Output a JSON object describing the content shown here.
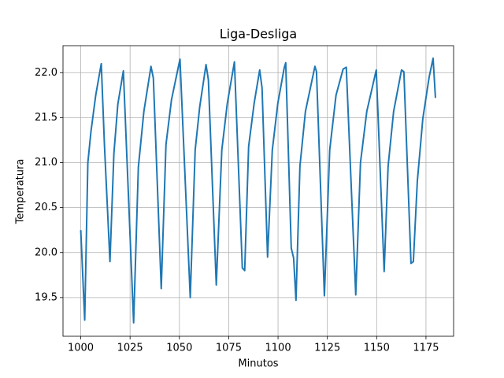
{
  "chart_data": {
    "type": "line",
    "title": "Liga-Desliga",
    "xlabel": "Minutos",
    "ylabel": "Temperatura",
    "x": [
      1000,
      1002,
      1003.6,
      1005.2,
      1007.6,
      1010.4,
      1012,
      1014.8,
      1016.8,
      1018.8,
      1021.6,
      1026.8,
      1029.2,
      1032,
      1035.6,
      1036.8,
      1040.8,
      1043.2,
      1046,
      1050.3,
      1055.5,
      1058,
      1060.3,
      1063.5,
      1064.7,
      1068.7,
      1071.5,
      1074.3,
      1077.9,
      1081.9,
      1083.1,
      1085.1,
      1087.9,
      1090.7,
      1091.9,
      1094.7,
      1097.1,
      1099.9,
      1103.1,
      1103.9,
      1106.7,
      1107.9,
      1109.1,
      1111.1,
      1113.9,
      1118.7,
      1119.5,
      1123.5,
      1126.2,
      1129.4,
      1133,
      1134.6,
      1139.4,
      1141.8,
      1145,
      1149.8,
      1153.8,
      1155.8,
      1158.6,
      1162.6,
      1163.8,
      1167.4,
      1168.6,
      1170.6,
      1173.4,
      1176.6,
      1178.6,
      1179.8
    ],
    "values": [
      20.25,
      19.25,
      21.0,
      21.35,
      21.75,
      22.1,
      21.2,
      19.9,
      21.1,
      21.65,
      22.02,
      19.22,
      20.95,
      21.57,
      22.07,
      21.94,
      19.6,
      21.2,
      21.7,
      22.15,
      19.5,
      21.14,
      21.62,
      22.09,
      21.92,
      19.64,
      21.14,
      21.66,
      22.12,
      19.83,
      19.8,
      21.18,
      21.66,
      22.03,
      21.83,
      19.95,
      21.14,
      21.66,
      22.05,
      22.11,
      20.05,
      19.94,
      19.47,
      20.96,
      21.57,
      22.07,
      22.01,
      19.52,
      21.14,
      21.75,
      22.04,
      22.06,
      19.53,
      21.0,
      21.57,
      22.03,
      19.79,
      20.96,
      21.57,
      22.03,
      22.01,
      19.88,
      19.9,
      20.79,
      21.49,
      21.95,
      22.16,
      21.72
    ],
    "color": "#1f77b4",
    "xlim": [
      991,
      1189
    ],
    "xticks": [
      1000,
      1025,
      1050,
      1075,
      1100,
      1125,
      1150,
      1175
    ],
    "ylim": [
      19.07,
      22.3
    ],
    "yticks": [
      19.5,
      {
        "value": 20,
        "label": "20.0"
      },
      20.5,
      {
        "value": 21,
        "label": "21.0"
      },
      21.5,
      {
        "value": 22,
        "label": "22.0"
      }
    ],
    "grid": true
  }
}
